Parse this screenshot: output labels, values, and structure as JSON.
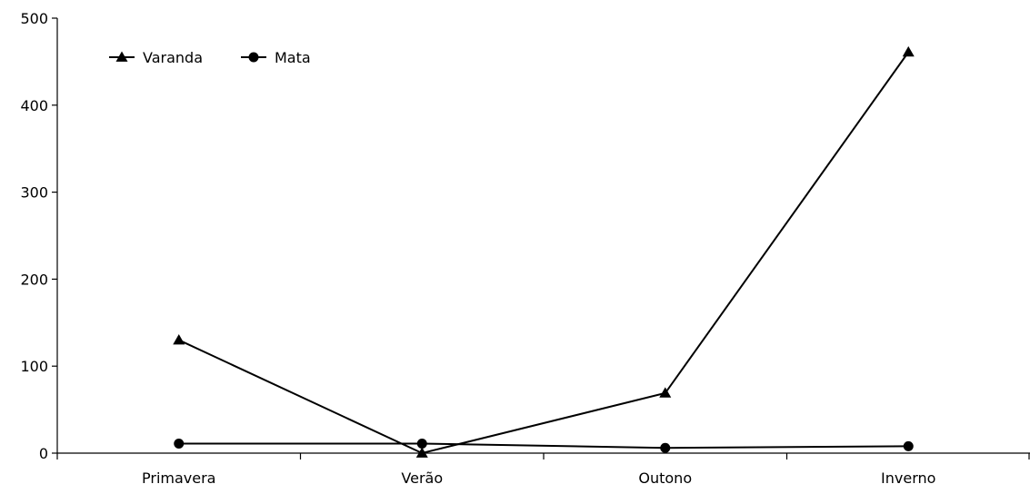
{
  "chart_data": {
    "type": "line",
    "title": "",
    "xlabel": "",
    "ylabel": "",
    "categories": [
      "Primavera",
      "Verão",
      "Outono",
      "Inverno"
    ],
    "ylim": [
      0,
      500
    ],
    "yticks": [
      0,
      100,
      200,
      300,
      400,
      500
    ],
    "grid": false,
    "legend_position": "top-left",
    "series": [
      {
        "name": "Varanda",
        "marker": "triangle",
        "color": "#000000",
        "values": [
          130,
          0,
          69,
          461
        ]
      },
      {
        "name": "Mata",
        "marker": "circle",
        "color": "#000000",
        "values": [
          11,
          11,
          6,
          8
        ]
      }
    ]
  }
}
